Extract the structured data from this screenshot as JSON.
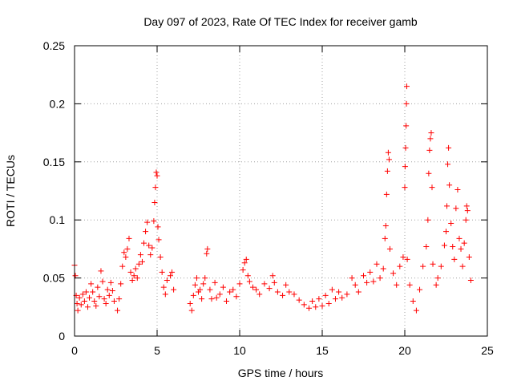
{
  "chart_data": {
    "type": "scatter",
    "title": "Day 097 of 2023, Rate Of TEC Index for receiver gamb",
    "xlabel": "GPS time / hours",
    "ylabel": "ROTI / TECUs",
    "xlim": [
      0,
      25
    ],
    "ylim": [
      0,
      0.25
    ],
    "xticks": [
      0,
      5,
      10,
      15,
      20,
      25
    ],
    "xtick_labels": [
      "0",
      "5",
      "10",
      "15",
      "20",
      "25"
    ],
    "yticks": [
      0,
      0.05,
      0.1,
      0.15,
      0.2,
      0.25
    ],
    "ytick_labels": [
      "0",
      "0.05",
      "0.1",
      "0.15",
      "0.2",
      "0.25"
    ],
    "grid": true,
    "marker": "+",
    "color": "#ff0000",
    "series": [
      {
        "points": [
          [
            0.0,
            0.061
          ],
          [
            0.05,
            0.052
          ],
          [
            0.1,
            0.035
          ],
          [
            0.15,
            0.028
          ],
          [
            0.2,
            0.022
          ],
          [
            0.3,
            0.033
          ],
          [
            0.4,
            0.027
          ],
          [
            0.5,
            0.036
          ],
          [
            0.6,
            0.03
          ],
          [
            0.7,
            0.038
          ],
          [
            0.8,
            0.025
          ],
          [
            0.9,
            0.033
          ],
          [
            1.0,
            0.045
          ],
          [
            1.1,
            0.038
          ],
          [
            1.2,
            0.03
          ],
          [
            1.3,
            0.026
          ],
          [
            1.4,
            0.042
          ],
          [
            1.5,
            0.034
          ],
          [
            1.6,
            0.056
          ],
          [
            1.7,
            0.047
          ],
          [
            1.8,
            0.032
          ],
          [
            1.9,
            0.028
          ],
          [
            2.0,
            0.04
          ],
          [
            2.1,
            0.035
          ],
          [
            2.2,
            0.046
          ],
          [
            2.3,
            0.039
          ],
          [
            2.4,
            0.03
          ],
          [
            2.6,
            0.022
          ],
          [
            2.7,
            0.032
          ],
          [
            2.8,
            0.045
          ],
          [
            2.9,
            0.06
          ],
          [
            3.0,
            0.072
          ],
          [
            3.1,
            0.068
          ],
          [
            3.2,
            0.075
          ],
          [
            3.3,
            0.084
          ],
          [
            3.4,
            0.055
          ],
          [
            3.5,
            0.048
          ],
          [
            3.6,
            0.052
          ],
          [
            3.7,
            0.058
          ],
          [
            3.8,
            0.05
          ],
          [
            3.9,
            0.062
          ],
          [
            4.0,
            0.07
          ],
          [
            4.1,
            0.064
          ],
          [
            4.2,
            0.08
          ],
          [
            4.3,
            0.09
          ],
          [
            4.4,
            0.098
          ],
          [
            4.5,
            0.078
          ],
          [
            4.6,
            0.07
          ],
          [
            4.7,
            0.076
          ],
          [
            4.8,
            0.099
          ],
          [
            4.85,
            0.115
          ],
          [
            4.9,
            0.128
          ],
          [
            4.95,
            0.141
          ],
          [
            5.0,
            0.138
          ],
          [
            5.05,
            0.094
          ],
          [
            5.1,
            0.083
          ],
          [
            5.2,
            0.068
          ],
          [
            5.3,
            0.055
          ],
          [
            5.4,
            0.042
          ],
          [
            5.5,
            0.036
          ],
          [
            5.6,
            0.048
          ],
          [
            5.8,
            0.052
          ],
          [
            5.9,
            0.055
          ],
          [
            6.0,
            0.04
          ],
          [
            7.0,
            0.028
          ],
          [
            7.1,
            0.022
          ],
          [
            7.2,
            0.035
          ],
          [
            7.3,
            0.044
          ],
          [
            7.4,
            0.05
          ],
          [
            7.5,
            0.038
          ],
          [
            7.6,
            0.04
          ],
          [
            7.7,
            0.032
          ],
          [
            7.8,
            0.045
          ],
          [
            7.9,
            0.05
          ],
          [
            8.0,
            0.071
          ],
          [
            8.05,
            0.075
          ],
          [
            8.2,
            0.04
          ],
          [
            8.3,
            0.032
          ],
          [
            8.5,
            0.046
          ],
          [
            8.6,
            0.033
          ],
          [
            8.8,
            0.036
          ],
          [
            9.0,
            0.042
          ],
          [
            9.2,
            0.03
          ],
          [
            9.4,
            0.038
          ],
          [
            9.6,
            0.04
          ],
          [
            9.8,
            0.034
          ],
          [
            10.0,
            0.045
          ],
          [
            10.2,
            0.057
          ],
          [
            10.3,
            0.063
          ],
          [
            10.4,
            0.066
          ],
          [
            10.5,
            0.052
          ],
          [
            10.6,
            0.047
          ],
          [
            10.8,
            0.042
          ],
          [
            11.0,
            0.04
          ],
          [
            11.2,
            0.036
          ],
          [
            11.5,
            0.045
          ],
          [
            11.8,
            0.041
          ],
          [
            12.0,
            0.052
          ],
          [
            12.1,
            0.046
          ],
          [
            12.3,
            0.038
          ],
          [
            12.6,
            0.035
          ],
          [
            12.8,
            0.044
          ],
          [
            13.0,
            0.038
          ],
          [
            13.3,
            0.036
          ],
          [
            13.6,
            0.031
          ],
          [
            13.9,
            0.027
          ],
          [
            14.2,
            0.024
          ],
          [
            14.4,
            0.03
          ],
          [
            14.6,
            0.025
          ],
          [
            14.8,
            0.032
          ],
          [
            15.0,
            0.026
          ],
          [
            15.2,
            0.035
          ],
          [
            15.4,
            0.028
          ],
          [
            15.6,
            0.04
          ],
          [
            15.8,
            0.032
          ],
          [
            16.0,
            0.038
          ],
          [
            16.2,
            0.033
          ],
          [
            16.5,
            0.036
          ],
          [
            16.8,
            0.05
          ],
          [
            17.0,
            0.044
          ],
          [
            17.2,
            0.038
          ],
          [
            17.5,
            0.052
          ],
          [
            17.7,
            0.046
          ],
          [
            17.9,
            0.055
          ],
          [
            18.1,
            0.047
          ],
          [
            18.3,
            0.062
          ],
          [
            18.5,
            0.05
          ],
          [
            18.7,
            0.058
          ],
          [
            18.8,
            0.084
          ],
          [
            18.85,
            0.095
          ],
          [
            18.9,
            0.122
          ],
          [
            18.95,
            0.142
          ],
          [
            19.0,
            0.158
          ],
          [
            19.05,
            0.152
          ],
          [
            19.1,
            0.075
          ],
          [
            19.3,
            0.054
          ],
          [
            19.5,
            0.044
          ],
          [
            19.7,
            0.06
          ],
          [
            19.9,
            0.068
          ],
          [
            20.0,
            0.128
          ],
          [
            20.02,
            0.146
          ],
          [
            20.05,
            0.162
          ],
          [
            20.08,
            0.181
          ],
          [
            20.1,
            0.2
          ],
          [
            20.12,
            0.215
          ],
          [
            20.15,
            0.066
          ],
          [
            20.3,
            0.044
          ],
          [
            20.5,
            0.03
          ],
          [
            20.7,
            0.022
          ],
          [
            20.9,
            0.04
          ],
          [
            21.1,
            0.06
          ],
          [
            21.3,
            0.077
          ],
          [
            21.4,
            0.1
          ],
          [
            21.45,
            0.14
          ],
          [
            21.5,
            0.16
          ],
          [
            21.55,
            0.17
          ],
          [
            21.6,
            0.175
          ],
          [
            21.65,
            0.128
          ],
          [
            21.7,
            0.062
          ],
          [
            21.9,
            0.044
          ],
          [
            22.0,
            0.05
          ],
          [
            22.2,
            0.06
          ],
          [
            22.4,
            0.078
          ],
          [
            22.5,
            0.09
          ],
          [
            22.55,
            0.112
          ],
          [
            22.6,
            0.148
          ],
          [
            22.65,
            0.162
          ],
          [
            22.7,
            0.13
          ],
          [
            22.8,
            0.097
          ],
          [
            22.9,
            0.077
          ],
          [
            23.0,
            0.066
          ],
          [
            23.1,
            0.11
          ],
          [
            23.2,
            0.126
          ],
          [
            23.3,
            0.084
          ],
          [
            23.4,
            0.075
          ],
          [
            23.5,
            0.06
          ],
          [
            23.6,
            0.08
          ],
          [
            23.7,
            0.1
          ],
          [
            23.75,
            0.112
          ],
          [
            23.8,
            0.108
          ],
          [
            23.9,
            0.068
          ],
          [
            24.0,
            0.048
          ]
        ]
      }
    ]
  }
}
